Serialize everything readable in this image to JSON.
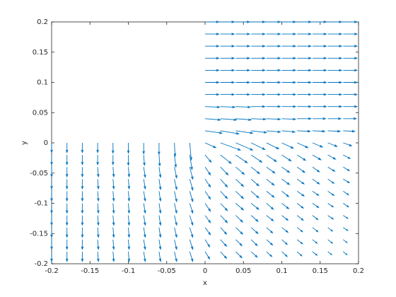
{
  "chart_data": {
    "type": "quiver",
    "xlabel": "x",
    "ylabel": "y",
    "color": "#0072bd",
    "xlim": [
      -0.2,
      0.2
    ],
    "ylim": [
      -0.2,
      0.2
    ],
    "xticks": [
      -0.2,
      -0.15,
      -0.1,
      -0.05,
      0,
      0.05,
      0.1,
      0.15,
      0.2
    ],
    "yticks": [
      -0.2,
      -0.15,
      -0.1,
      -0.05,
      0,
      0.05,
      0.1,
      0.15,
      0.2
    ],
    "x": [
      -0.2,
      -0.18,
      -0.16,
      -0.14,
      -0.12,
      -0.1,
      -0.08,
      -0.06,
      -0.04,
      -0.02,
      0,
      0.02,
      0.04,
      0.06,
      0.08,
      0.1,
      0.12,
      0.14,
      0.16,
      0.18
    ],
    "y": [
      0.2,
      0.18,
      0.16,
      0.14,
      0.12,
      0.1,
      0.08,
      0.06,
      0.04,
      0.02,
      0,
      -0.02,
      -0.04,
      -0.06,
      -0.08,
      -0.1,
      -0.12,
      -0.14,
      -0.16,
      -0.18
    ],
    "u": [
      [
        null,
        null,
        null,
        null,
        null,
        null,
        null,
        null,
        null,
        null,
        0.018,
        0.018,
        0.018,
        0.018,
        0.018,
        0.018,
        0.018,
        0.018,
        0.018,
        0.018
      ],
      [
        null,
        null,
        null,
        null,
        null,
        null,
        null,
        null,
        null,
        null,
        0.018,
        0.018,
        0.018,
        0.018,
        0.018,
        0.018,
        0.018,
        0.018,
        0.018,
        0.018
      ],
      [
        null,
        null,
        null,
        null,
        null,
        null,
        null,
        null,
        null,
        null,
        0.018,
        0.018,
        0.018,
        0.018,
        0.018,
        0.018,
        0.018,
        0.018,
        0.018,
        0.018
      ],
      [
        null,
        null,
        null,
        null,
        null,
        null,
        null,
        null,
        null,
        null,
        0.018,
        0.018,
        0.018,
        0.018,
        0.018,
        0.018,
        0.018,
        0.018,
        0.018,
        0.018
      ],
      [
        null,
        null,
        null,
        null,
        null,
        null,
        null,
        null,
        null,
        null,
        0.018,
        0.018,
        0.018,
        0.018,
        0.018,
        0.018,
        0.018,
        0.018,
        0.018,
        0.018
      ],
      [
        null,
        null,
        null,
        null,
        null,
        null,
        null,
        null,
        null,
        null,
        0.018,
        0.018,
        0.018,
        0.018,
        0.018,
        0.018,
        0.018,
        0.018,
        0.018,
        0.018
      ],
      [
        null,
        null,
        null,
        null,
        null,
        null,
        null,
        null,
        null,
        null,
        0.018,
        0.018,
        0.018,
        0.018,
        0.018,
        0.018,
        0.018,
        0.018,
        0.018,
        0.018
      ],
      [
        null,
        null,
        null,
        null,
        null,
        null,
        null,
        null,
        null,
        null,
        0.019,
        0.019,
        0.019,
        0.018,
        0.018,
        0.018,
        0.018,
        0.018,
        0.018,
        0.018
      ],
      [
        null,
        null,
        null,
        null,
        null,
        null,
        null,
        null,
        null,
        null,
        0.02,
        0.021,
        0.02,
        0.019,
        0.018,
        0.018,
        0.018,
        0.017,
        0.017,
        0.017
      ],
      [
        null,
        null,
        null,
        null,
        null,
        null,
        null,
        null,
        null,
        null,
        0.022,
        0.024,
        0.022,
        0.02,
        0.018,
        0.017,
        0.017,
        0.016,
        0.016,
        0.015
      ],
      [
        0,
        0,
        0,
        0,
        0,
        0,
        0,
        0,
        0.001,
        0.002,
        0.014,
        0.026,
        0.022,
        0.018,
        0.016,
        0.015,
        0.014,
        0.013,
        0.012,
        0.011
      ],
      [
        0,
        0,
        0,
        0,
        0,
        0,
        0.001,
        0.001,
        0.002,
        0.003,
        0.008,
        0.014,
        0.015,
        0.014,
        0.013,
        0.012,
        0.011,
        0.011,
        0.01,
        0.009
      ],
      [
        0,
        0,
        0,
        0.001,
        0.001,
        0.001,
        0.002,
        0.002,
        0.003,
        0.004,
        0.007,
        0.01,
        0.011,
        0.011,
        0.011,
        0.01,
        0.01,
        0.009,
        0.009,
        0.008
      ],
      [
        0,
        0,
        0,
        0.001,
        0.001,
        0.001,
        0.002,
        0.002,
        0.003,
        0.004,
        0.007,
        0.009,
        0.01,
        0.01,
        0.01,
        0.01,
        0.009,
        0.009,
        0.008,
        0.008
      ],
      [
        0,
        0,
        0,
        0.001,
        0.001,
        0.001,
        0.002,
        0.002,
        0.003,
        0.004,
        0.007,
        0.009,
        0.01,
        0.01,
        0.01,
        0.009,
        0.009,
        0.008,
        0.008,
        0.007
      ],
      [
        0,
        0,
        0,
        0.001,
        0.001,
        0.001,
        0.002,
        0.002,
        0.003,
        0.004,
        0.007,
        0.009,
        0.01,
        0.01,
        0.009,
        0.009,
        0.008,
        0.008,
        0.007,
        0.007
      ],
      [
        0,
        0,
        0,
        0.001,
        0.001,
        0.001,
        0.002,
        0.002,
        0.003,
        0.004,
        0.007,
        0.009,
        0.009,
        0.009,
        0.009,
        0.008,
        0.008,
        0.007,
        0.007,
        0.006
      ],
      [
        0,
        0,
        0,
        0.001,
        0.001,
        0.001,
        0.002,
        0.002,
        0.003,
        0.004,
        0.007,
        0.008,
        0.009,
        0.009,
        0.008,
        0.008,
        0.007,
        0.007,
        0.006,
        0.006
      ],
      [
        0,
        0,
        0,
        0.001,
        0.001,
        0.001,
        0.002,
        0.002,
        0.003,
        0.004,
        0.006,
        0.008,
        0.008,
        0.008,
        0.008,
        0.007,
        0.007,
        0.006,
        0.006,
        0.005
      ],
      [
        0,
        0,
        0,
        0.001,
        0.001,
        0.001,
        0.002,
        0.002,
        0.003,
        0.004,
        0.006,
        0.008,
        0.008,
        0.008,
        0.007,
        0.007,
        0.006,
        0.006,
        0.005,
        0.005
      ]
    ],
    "v": [
      [
        null,
        null,
        null,
        null,
        null,
        null,
        null,
        null,
        null,
        null,
        0,
        0,
        0,
        0,
        0,
        0,
        0,
        0,
        0,
        0
      ],
      [
        null,
        null,
        null,
        null,
        null,
        null,
        null,
        null,
        null,
        null,
        0,
        0,
        0,
        0,
        0,
        0,
        0,
        0,
        0,
        0
      ],
      [
        null,
        null,
        null,
        null,
        null,
        null,
        null,
        null,
        null,
        null,
        0,
        0,
        0,
        0,
        0,
        0,
        0,
        0,
        0,
        0
      ],
      [
        null,
        null,
        null,
        null,
        null,
        null,
        null,
        null,
        null,
        null,
        0,
        0,
        0,
        0,
        0,
        0,
        0,
        0,
        0,
        0
      ],
      [
        null,
        null,
        null,
        null,
        null,
        null,
        null,
        null,
        null,
        null,
        0,
        0,
        0,
        0,
        0,
        0,
        0,
        0,
        0,
        0
      ],
      [
        null,
        null,
        null,
        null,
        null,
        null,
        null,
        null,
        null,
        null,
        0,
        0,
        0,
        0,
        0,
        0,
        0,
        0,
        0,
        0
      ],
      [
        null,
        null,
        null,
        null,
        null,
        null,
        null,
        null,
        null,
        null,
        0,
        0,
        0,
        0,
        0,
        0,
        0,
        0,
        0,
        0
      ],
      [
        null,
        null,
        null,
        null,
        null,
        null,
        null,
        null,
        null,
        null,
        -0.001,
        -0.001,
        -0.001,
        0,
        0,
        0,
        0,
        0,
        0,
        0
      ],
      [
        null,
        null,
        null,
        null,
        null,
        null,
        null,
        null,
        null,
        null,
        -0.002,
        -0.002,
        -0.002,
        -0.001,
        -0.001,
        -0.001,
        0,
        0,
        0,
        0
      ],
      [
        null,
        null,
        null,
        null,
        null,
        null,
        null,
        null,
        null,
        null,
        -0.004,
        -0.005,
        -0.004,
        -0.003,
        -0.002,
        -0.002,
        -0.001,
        -0.001,
        -0.001,
        -0.001
      ],
      [
        -0.016,
        -0.016,
        -0.016,
        -0.016,
        -0.017,
        -0.017,
        -0.018,
        -0.019,
        -0.022,
        -0.028,
        -0.008,
        -0.012,
        -0.012,
        -0.011,
        -0.01,
        -0.009,
        -0.008,
        -0.007,
        -0.006,
        -0.005
      ],
      [
        -0.016,
        -0.016,
        -0.016,
        -0.016,
        -0.016,
        -0.017,
        -0.017,
        -0.018,
        -0.02,
        -0.024,
        -0.012,
        -0.014,
        -0.013,
        -0.012,
        -0.011,
        -0.01,
        -0.009,
        -0.008,
        -0.007,
        -0.006
      ],
      [
        -0.016,
        -0.016,
        -0.016,
        -0.016,
        -0.016,
        -0.016,
        -0.017,
        -0.017,
        -0.018,
        -0.02,
        -0.013,
        -0.013,
        -0.012,
        -0.011,
        -0.01,
        -0.009,
        -0.009,
        -0.008,
        -0.007,
        -0.006
      ],
      [
        -0.016,
        -0.016,
        -0.016,
        -0.016,
        -0.016,
        -0.016,
        -0.016,
        -0.017,
        -0.017,
        -0.018,
        -0.013,
        -0.013,
        -0.012,
        -0.011,
        -0.01,
        -0.009,
        -0.008,
        -0.008,
        -0.007,
        -0.006
      ],
      [
        -0.016,
        -0.016,
        -0.016,
        -0.016,
        -0.016,
        -0.016,
        -0.016,
        -0.016,
        -0.017,
        -0.017,
        -0.013,
        -0.012,
        -0.012,
        -0.011,
        -0.01,
        -0.009,
        -0.008,
        -0.007,
        -0.007,
        -0.006
      ],
      [
        -0.016,
        -0.016,
        -0.016,
        -0.016,
        -0.016,
        -0.016,
        -0.016,
        -0.016,
        -0.016,
        -0.016,
        -0.013,
        -0.012,
        -0.011,
        -0.01,
        -0.01,
        -0.009,
        -0.008,
        -0.007,
        -0.006,
        -0.006
      ],
      [
        -0.016,
        -0.016,
        -0.016,
        -0.016,
        -0.016,
        -0.016,
        -0.016,
        -0.016,
        -0.016,
        -0.016,
        -0.012,
        -0.012,
        -0.011,
        -0.01,
        -0.009,
        -0.008,
        -0.008,
        -0.007,
        -0.006,
        -0.005
      ],
      [
        -0.016,
        -0.016,
        -0.016,
        -0.016,
        -0.016,
        -0.016,
        -0.016,
        -0.016,
        -0.016,
        -0.016,
        -0.012,
        -0.011,
        -0.011,
        -0.01,
        -0.009,
        -0.008,
        -0.007,
        -0.007,
        -0.006,
        -0.005
      ],
      [
        -0.016,
        -0.016,
        -0.016,
        -0.016,
        -0.016,
        -0.016,
        -0.016,
        -0.016,
        -0.016,
        -0.016,
        -0.012,
        -0.011,
        -0.01,
        -0.01,
        -0.009,
        -0.008,
        -0.007,
        -0.006,
        -0.006,
        -0.005
      ],
      [
        -0.016,
        -0.016,
        -0.016,
        -0.016,
        -0.016,
        -0.016,
        -0.016,
        -0.016,
        -0.016,
        -0.016,
        -0.012,
        -0.011,
        -0.01,
        -0.009,
        -0.008,
        -0.008,
        -0.007,
        -0.006,
        -0.005,
        -0.005
      ]
    ]
  }
}
